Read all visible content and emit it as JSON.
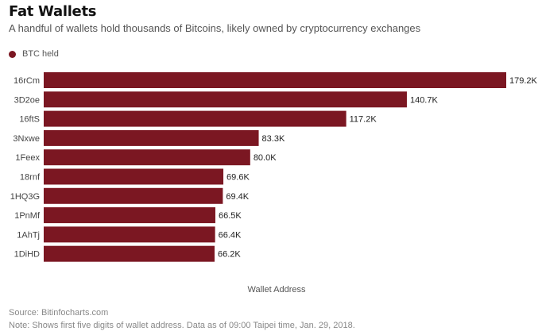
{
  "header": {
    "title": "Fat Wallets",
    "subtitle": "A handful of wallets hold thousands of Bitcoins, likely owned by cryptocurrency exchanges"
  },
  "legend": {
    "label": "BTC held",
    "color": "#7b1722"
  },
  "footer": {
    "source": "Source: Bitinfocharts.com",
    "note": "Note: Shows first five digits of wallet address. Data as of 09:00 Taipei time, Jan. 29, 2018."
  },
  "chart_data": {
    "type": "bar",
    "orientation": "horizontal",
    "categories": [
      "16rCm",
      "3D2oe",
      "16ftS",
      "3Nxwe",
      "1Feex",
      "18rnf",
      "1HQ3G",
      "1PnMf",
      "1AhTj",
      "1DiHD"
    ],
    "series": [
      {
        "name": "BTC held",
        "values": [
          179.2,
          140.7,
          117.2,
          83.3,
          80.0,
          69.6,
          69.4,
          66.5,
          66.4,
          66.2
        ],
        "labels": [
          "179.2K",
          "140.7K",
          "117.2K",
          "83.3K",
          "80.0K",
          "69.6K",
          "69.4K",
          "66.5K",
          "66.4K",
          "66.2K"
        ]
      }
    ],
    "xlabel": "Wallet Address",
    "ylabel": "",
    "xlim": [
      0,
      179.2
    ],
    "grid": false,
    "legend_position": "top-left",
    "bar_color": "#7b1722"
  }
}
